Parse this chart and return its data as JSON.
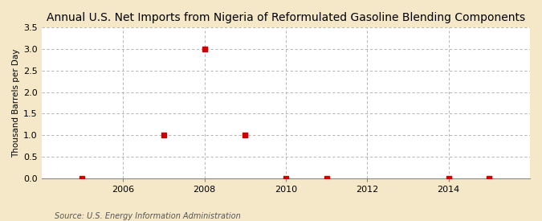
{
  "title": "Annual U.S. Net Imports from Nigeria of Reformulated Gasoline Blending Components",
  "ylabel": "Thousand Barrels per Day",
  "source": "Source: U.S. Energy Information Administration",
  "background_color": "#f5e8c8",
  "plot_bg_color": "#ffffff",
  "data_years": [
    2005,
    2007,
    2008,
    2009,
    2010,
    2011,
    2014,
    2015
  ],
  "data_values": [
    0.0,
    1.0,
    3.0,
    1.0,
    0.0,
    0.0,
    0.0,
    0.0
  ],
  "marker_color": "#cc0000",
  "marker_size": 4,
  "xlim": [
    2004.0,
    2016.0
  ],
  "ylim": [
    0.0,
    3.5
  ],
  "yticks": [
    0.0,
    0.5,
    1.0,
    1.5,
    2.0,
    2.5,
    3.0,
    3.5
  ],
  "xticks": [
    2006,
    2008,
    2010,
    2012,
    2014
  ],
  "grid_color": "#aaaaaa",
  "title_fontsize": 10,
  "label_fontsize": 7.5,
  "tick_fontsize": 8,
  "source_fontsize": 7
}
